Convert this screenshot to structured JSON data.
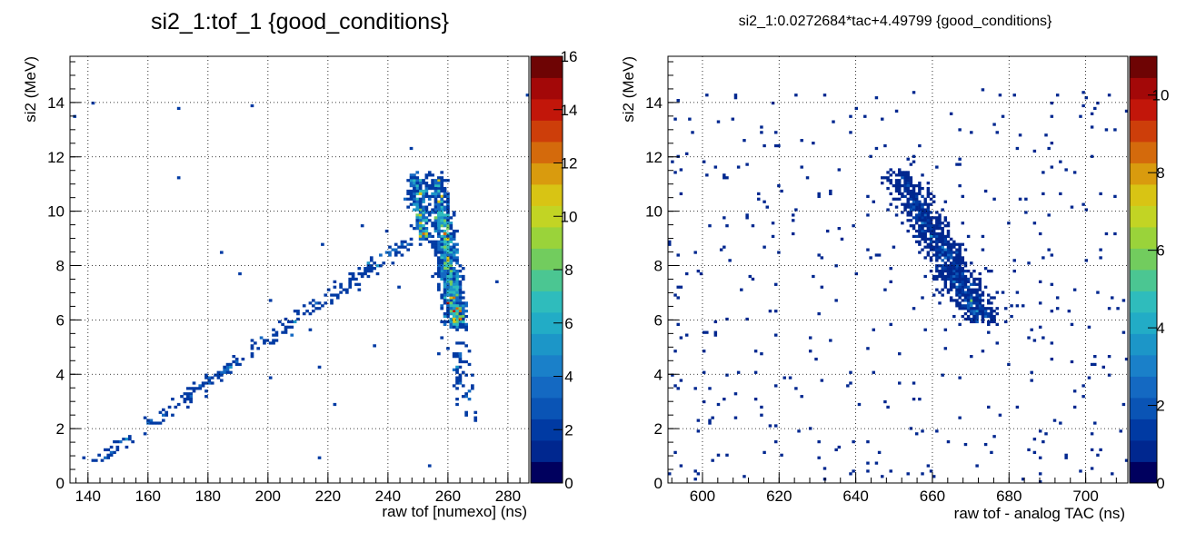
{
  "colors": {
    "palette": [
      "#00005e",
      "#00278f",
      "#003aa3",
      "#0a54b5",
      "#1469c2",
      "#1a80c9",
      "#1c96c8",
      "#22acc6",
      "#2fbcbc",
      "#4bc692",
      "#72cc5e",
      "#9ad33a",
      "#c2d424",
      "#d8c414",
      "#d99b0e",
      "#d46a0c",
      "#cd3e0a",
      "#c2160a",
      "#a30808",
      "#6e0404"
    ],
    "grid": "#000000",
    "frame": "#000000"
  },
  "chart_data": [
    {
      "type": "heatmap",
      "title": "si2_1:tof_1 {good_conditions}",
      "xlabel": "raw tof [numexo] (ns)",
      "ylabel": "si2 (MeV)",
      "xlim": [
        134,
        287
      ],
      "ylim": [
        0,
        15.7
      ],
      "x_ticks": [
        "140",
        "160",
        "180",
        "200",
        "220",
        "240",
        "260",
        "280"
      ],
      "x_tick_values": [
        140,
        160,
        180,
        200,
        220,
        240,
        260,
        280
      ],
      "y_ticks": [
        "0",
        "2",
        "4",
        "6",
        "8",
        "10",
        "12",
        "14"
      ],
      "y_tick_values": [
        0,
        2,
        4,
        6,
        8,
        10,
        12,
        14
      ],
      "z_range": [
        0,
        16
      ],
      "z_ticks": [
        "0",
        "2",
        "4",
        "6",
        "8",
        "10",
        "12",
        "14",
        "16"
      ],
      "z_tick_values": [
        0,
        2,
        4,
        6,
        8,
        10,
        12,
        14,
        16
      ],
      "grid": true,
      "clusters": [
        {
          "shape": "band",
          "from": [
            256,
            11.3
          ],
          "to": [
            263,
            5.8
          ],
          "width_x": 5,
          "peak": 14,
          "count": 900
        },
        {
          "shape": "band",
          "from": [
            249,
            11.4
          ],
          "to": [
            252,
            9.0
          ],
          "width_x": 4,
          "peak": 5,
          "count": 260
        },
        {
          "shape": "band",
          "from": [
            140,
            0.6
          ],
          "to": [
            248,
            9.0
          ],
          "width_x": 4,
          "peak": 2,
          "count": 260
        },
        {
          "shape": "band",
          "from": [
            262,
            5.5
          ],
          "to": [
            268,
            2.4
          ],
          "width_x": 6,
          "peak": 1,
          "count": 60
        }
      ],
      "background": {
        "count": 25,
        "value": 1
      }
    },
    {
      "type": "heatmap",
      "title": "si2_1:0.0272684*tac+4.49799 {good_conditions}",
      "xlabel": "raw tof - analog TAC (ns)",
      "ylabel": "si2 (MeV)",
      "xlim": [
        591,
        711
      ],
      "ylim": [
        0,
        15.7
      ],
      "x_ticks": [
        "600",
        "620",
        "640",
        "660",
        "680",
        "700"
      ],
      "x_tick_values": [
        600,
        620,
        640,
        660,
        680,
        700
      ],
      "y_ticks": [
        "0",
        "2",
        "4",
        "6",
        "8",
        "10",
        "12",
        "14"
      ],
      "y_tick_values": [
        0,
        2,
        4,
        6,
        8,
        10,
        12,
        14
      ],
      "z_range": [
        0,
        11
      ],
      "z_ticks": [
        "0",
        "2",
        "4",
        "6",
        "8",
        "10"
      ],
      "z_tick_values": [
        0,
        2,
        4,
        6,
        8,
        10
      ],
      "grid": true,
      "clusters": [
        {
          "shape": "band",
          "from": [
            651,
            11.4
          ],
          "to": [
            673,
            6.0
          ],
          "width_x": 7,
          "peak": 6,
          "count": 1100
        }
      ],
      "background": {
        "count": 420,
        "value": 1
      }
    }
  ]
}
